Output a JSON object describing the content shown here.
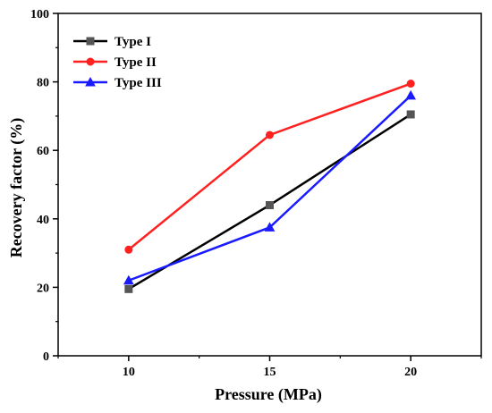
{
  "chart_data": {
    "type": "line",
    "title": "",
    "xlabel": "Pressure (MPa)",
    "ylabel": "Recovery factor (%)",
    "xlim": [
      7.5,
      22.5
    ],
    "ylim": [
      0,
      100
    ],
    "x": [
      10,
      15,
      20
    ],
    "x_ticks": [
      10,
      15,
      20
    ],
    "y_ticks": [
      0,
      20,
      40,
      60,
      80,
      100
    ],
    "grid": false,
    "legend_position": "top-left",
    "series": [
      {
        "name": "Type I",
        "values": [
          19.5,
          44.0,
          70.5
        ],
        "color": "#000000",
        "marker": "square"
      },
      {
        "name": "Type II",
        "values": [
          31.0,
          64.5,
          79.5
        ],
        "color": "#ff2020",
        "marker": "circle"
      },
      {
        "name": "Type III",
        "values": [
          22.0,
          37.5,
          76.0
        ],
        "color": "#1a1aff",
        "marker": "triangle"
      }
    ]
  }
}
